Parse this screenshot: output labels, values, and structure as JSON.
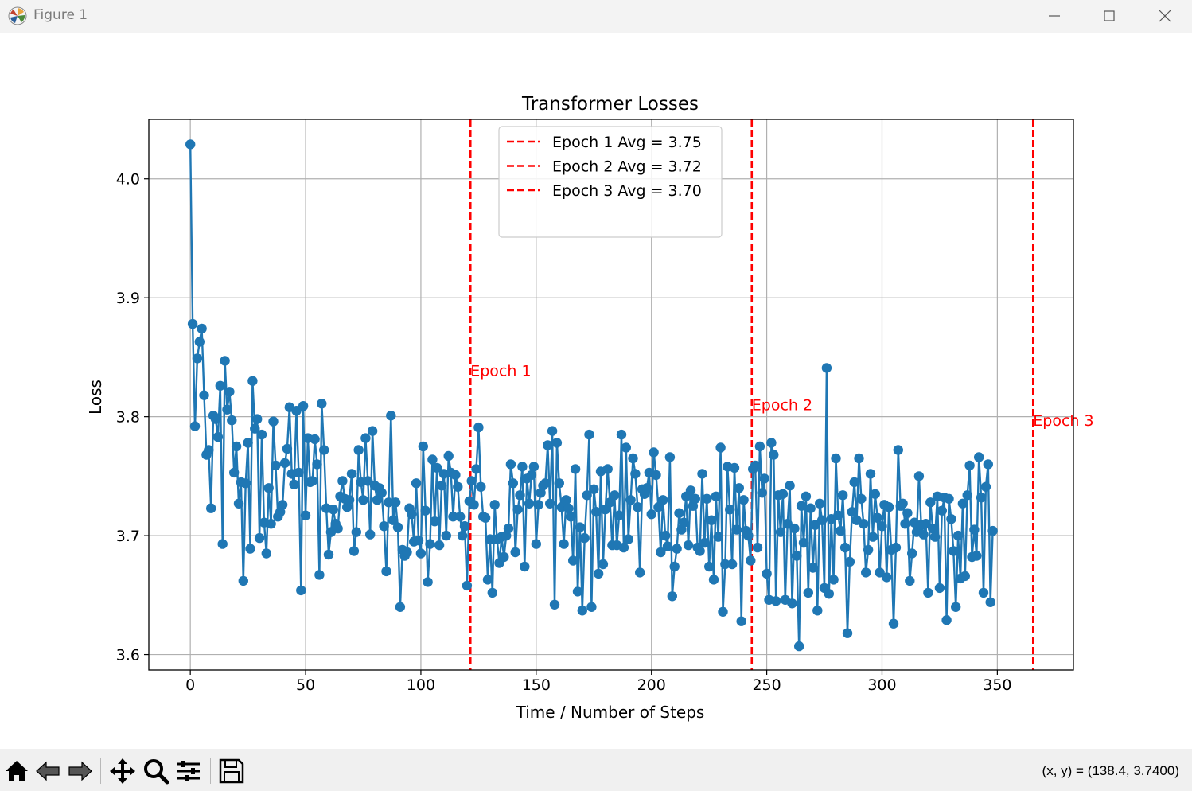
{
  "window": {
    "title": "Figure 1"
  },
  "toolbar": {
    "coord_readout": "(x, y) = (138.4, 3.7400)",
    "tools": [
      "home-icon",
      "back-arrow-icon",
      "forward-arrow-icon",
      "pan-icon",
      "zoom-icon",
      "configure-subplots-icon",
      "save-icon"
    ]
  },
  "colors": {
    "series": "#1f77b4",
    "epoch_lines": "#ff0000"
  },
  "chart_data": {
    "type": "line",
    "title": "Transformer Losses",
    "xlabel": "Time / Number of Steps",
    "ylabel": "Loss",
    "xlim": [
      -18,
      383
    ],
    "ylim": [
      3.587,
      4.05
    ],
    "xticks": [
      0,
      50,
      100,
      150,
      200,
      250,
      300,
      350
    ],
    "yticks": [
      3.6,
      3.7,
      3.8,
      3.9,
      4.0
    ],
    "ytick_labels": [
      "3.6",
      "3.7",
      "3.8",
      "3.9",
      "4.0"
    ],
    "grid": true,
    "legend_placement": "upper center",
    "markers": true,
    "series": [
      {
        "x_start": 0,
        "values": [
          4.029,
          3.878,
          3.792,
          3.849,
          3.863,
          3.874,
          3.818,
          3.768,
          3.772,
          3.723,
          3.801,
          3.798,
          3.783,
          3.826,
          3.693,
          3.847,
          3.806,
          3.821,
          3.797,
          3.753,
          3.775,
          3.727,
          3.745,
          3.662,
          3.744,
          3.778,
          3.689,
          3.83,
          3.79,
          3.798,
          3.698,
          3.785,
          3.711,
          3.685,
          3.74,
          3.71,
          3.796,
          3.759,
          3.716,
          3.72,
          3.726,
          3.761,
          3.773,
          3.808,
          3.752,
          3.743,
          3.805,
          3.753,
          3.654,
          3.809,
          3.717,
          3.782,
          3.745,
          3.746,
          3.781,
          3.76,
          3.667,
          3.811,
          3.772,
          3.723,
          3.684,
          3.703,
          3.722,
          3.71,
          3.706,
          3.733,
          3.746,
          3.731,
          3.724,
          3.73,
          3.752,
          3.687,
          3.703,
          3.772,
          3.745,
          3.73,
          3.782,
          3.746,
          3.701,
          3.788,
          3.742,
          3.73,
          3.74,
          3.736,
          3.708,
          3.67,
          3.728,
          3.801,
          3.713,
          3.728,
          3.707,
          3.64,
          3.688,
          3.683,
          3.686,
          3.723,
          3.718,
          3.695,
          3.744,
          3.696,
          3.685,
          3.775,
          3.721,
          3.661,
          3.693,
          3.764,
          3.712,
          3.757,
          3.692,
          3.742,
          3.752,
          3.7,
          3.767,
          3.753,
          3.716,
          3.751,
          3.741,
          3.716,
          3.7,
          3.708,
          3.658,
          3.729,
          3.746,
          3.726,
          3.756,
          3.791,
          3.741,
          3.716,
          3.715,
          3.663,
          3.697,
          3.652,
          3.726,
          3.697,
          3.677,
          3.699,
          3.682,
          3.7,
          3.706,
          3.76,
          3.744,
          3.686,
          3.722,
          3.734,
          3.758,
          3.674,
          3.748,
          3.727,
          3.751,
          3.758,
          3.693,
          3.726,
          3.736,
          3.742,
          3.744,
          3.776,
          3.727,
          3.788,
          3.642,
          3.778,
          3.744,
          3.724,
          3.693,
          3.73,
          3.723,
          3.716,
          3.679,
          3.756,
          3.653,
          3.707,
          3.637,
          3.698,
          3.734,
          3.785,
          3.64,
          3.739,
          3.72,
          3.668,
          3.754,
          3.676,
          3.722,
          3.756,
          3.728,
          3.692,
          3.734,
          3.692,
          3.717,
          3.785,
          3.69,
          3.774,
          3.697,
          3.73,
          3.765,
          3.752,
          3.724,
          3.669,
          3.739,
          3.735,
          3.74,
          3.753,
          3.718,
          3.77,
          3.751,
          3.724,
          3.686,
          3.73,
          3.7,
          3.691,
          3.766,
          3.649,
          3.674,
          3.689,
          3.719,
          3.705,
          3.711,
          3.733,
          3.692,
          3.738,
          3.725,
          3.731,
          3.69,
          3.687,
          3.752,
          3.694,
          3.731,
          3.674,
          3.713,
          3.663,
          3.733,
          3.699,
          3.774,
          3.636,
          3.676,
          3.758,
          3.722,
          3.676,
          3.757,
          3.705,
          3.74,
          3.628,
          3.73,
          3.704,
          3.7,
          3.679,
          3.756,
          3.759,
          3.69,
          3.775,
          3.736,
          3.748,
          3.668,
          3.646,
          3.778,
          3.768,
          3.645,
          3.734,
          3.703,
          3.735,
          3.646,
          3.71,
          3.742,
          3.643,
          3.706,
          3.683,
          3.607,
          3.725,
          3.694,
          3.733,
          3.652,
          3.723,
          3.673,
          3.709,
          3.637,
          3.727,
          3.713,
          3.656,
          3.841,
          3.651,
          3.714,
          3.663,
          3.765,
          3.717,
          3.704,
          3.734,
          3.69,
          3.618,
          3.678,
          3.72,
          3.745,
          3.713,
          3.765,
          3.731,
          3.71,
          3.669,
          3.688,
          3.752,
          3.699,
          3.735,
          3.715,
          3.669,
          3.708,
          3.726,
          3.665,
          3.724,
          3.688,
          3.626,
          3.69,
          3.772,
          3.725,
          3.727,
          3.71,
          3.719,
          3.662,
          3.685,
          3.711,
          3.703,
          3.75,
          3.709,
          3.701,
          3.71,
          3.652,
          3.728,
          3.706,
          3.699,
          3.733,
          3.656,
          3.721,
          3.732,
          3.629,
          3.731,
          3.714,
          3.687,
          3.64,
          3.7,
          3.664,
          3.727,
          3.666,
          3.734,
          3.759,
          3.682,
          3.705,
          3.683,
          3.766,
          3.732,
          3.652,
          3.741,
          3.76,
          3.644,
          3.704
        ]
      }
    ],
    "epoch_lines": [
      {
        "x": 121.5,
        "legend": "Epoch 1 Avg = 3.75",
        "label": "Epoch 1",
        "label_y": 3.839
      },
      {
        "x": 243.5,
        "legend": "Epoch 2 Avg = 3.72",
        "label": "Epoch 2",
        "label_y": 3.81
      },
      {
        "x": 365.5,
        "legend": "Epoch 3 Avg = 3.70",
        "label": "Epoch 3",
        "label_y": 3.797
      }
    ]
  }
}
